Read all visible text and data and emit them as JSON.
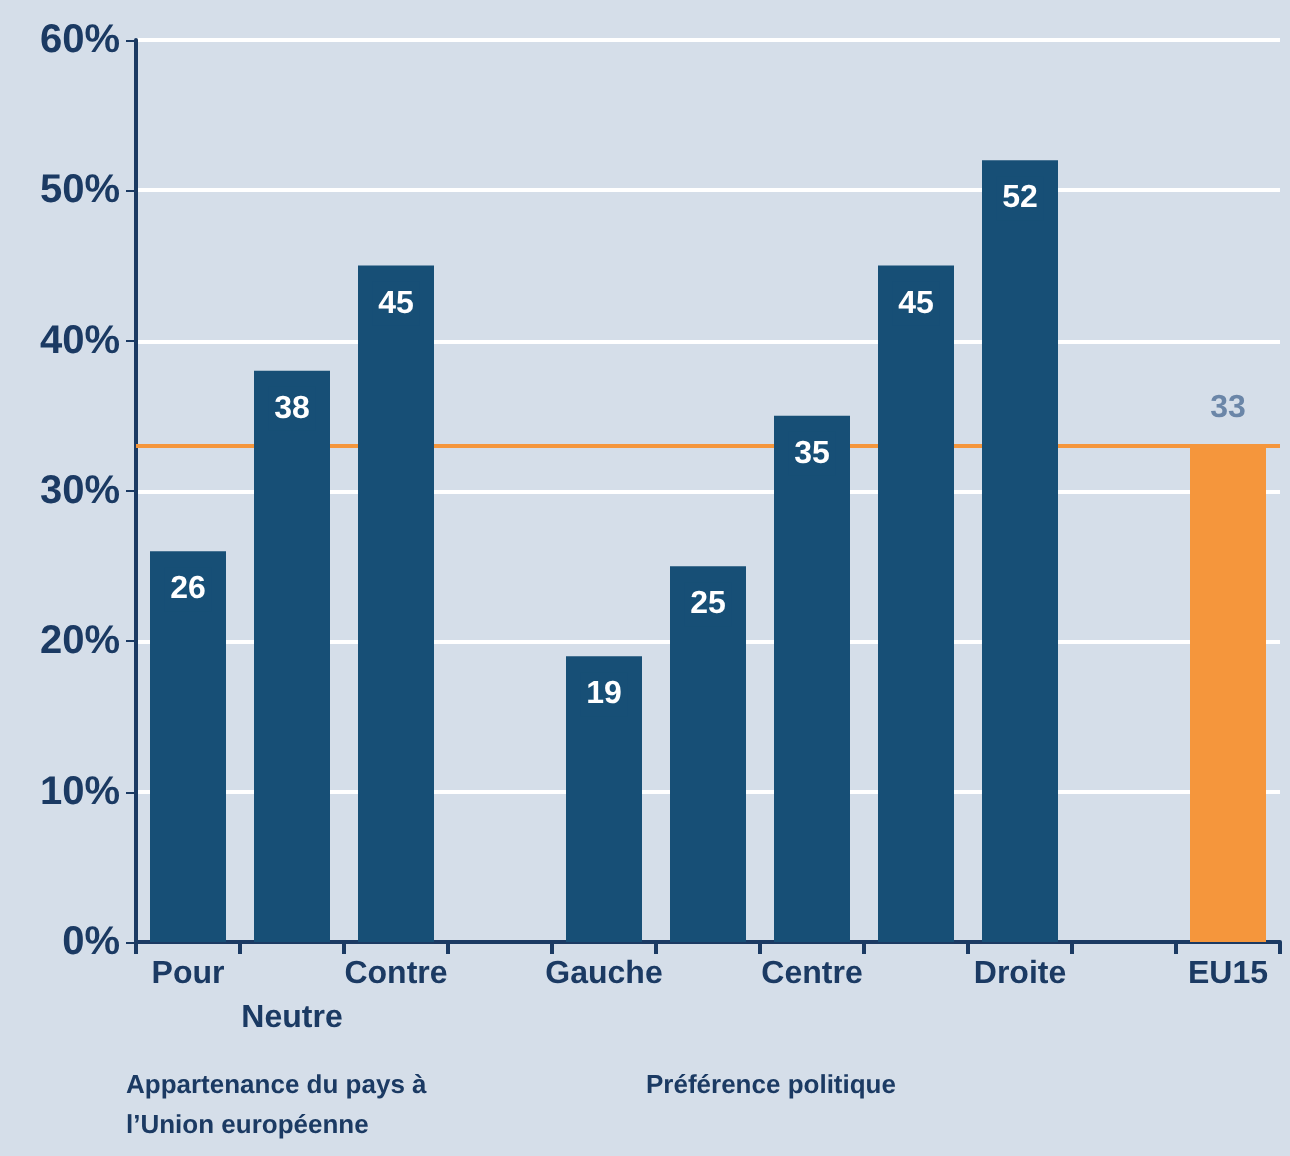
{
  "chart_data": {
    "type": "bar",
    "categories": [
      "Pour",
      "Neutre",
      "Contre",
      null,
      "Gauche",
      null,
      "Centre",
      null,
      "Droite",
      null,
      "EU15"
    ],
    "values": [
      26,
      38,
      45,
      null,
      19,
      25,
      35,
      45,
      52,
      null,
      33
    ],
    "colors": [
      "#174f76",
      "#174f76",
      "#174f76",
      "#174f76",
      "#174f76",
      "#174f76",
      "#174f76",
      "#174f76",
      "#174f76",
      "#174f76",
      "#f5963c"
    ],
    "data_labels": true,
    "ylim": [
      0,
      60
    ],
    "yticks": [
      {
        "value": 0,
        "label": "0%"
      },
      {
        "value": 10,
        "label": "10%"
      },
      {
        "value": 20,
        "label": "20%"
      },
      {
        "value": 30,
        "label": "30%"
      },
      {
        "value": 40,
        "label": "40%"
      },
      {
        "value": 50,
        "label": "50%"
      },
      {
        "value": 60,
        "label": "60%"
      }
    ],
    "grid": "y",
    "ref_lines": [
      {
        "axis": "y",
        "value": 33,
        "color": "#f5963c"
      }
    ],
    "annotations": [
      "Appartenance du pays à l’Union européenne",
      "Préférence politique"
    ]
  }
}
